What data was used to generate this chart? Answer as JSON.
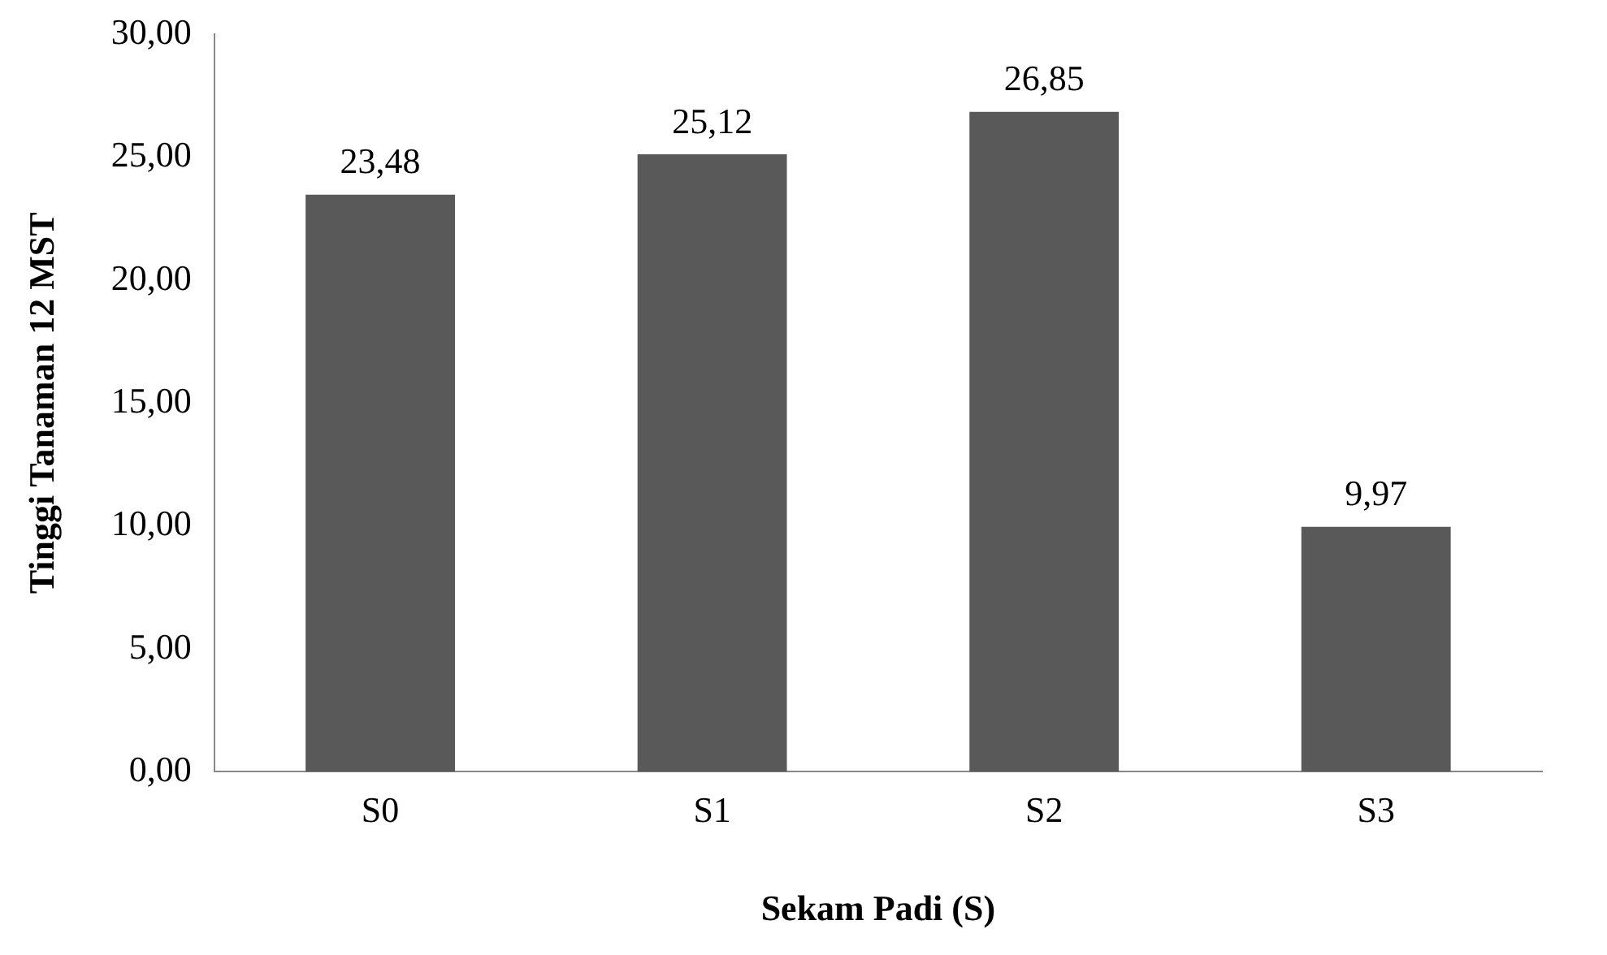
{
  "chart_data": {
    "type": "bar",
    "xlabel": "Sekam Padi (S)",
    "ylabel": "Tinggi Tanaman 12 MST",
    "categories": [
      "S0",
      "S1",
      "S2",
      "S3"
    ],
    "values": [
      23.48,
      25.12,
      26.85,
      9.97
    ],
    "value_labels": [
      "23,48",
      "25,12",
      "26,85",
      "9,97"
    ],
    "color": "#595959",
    "ylim": [
      0,
      30
    ],
    "yticks": [
      {
        "value": 0,
        "label": "0,00"
      },
      {
        "value": 5,
        "label": "5,00"
      },
      {
        "value": 10,
        "label": "10,00"
      },
      {
        "value": 15,
        "label": "15,00"
      },
      {
        "value": 20,
        "label": "20,00"
      },
      {
        "value": 25,
        "label": "25,00"
      },
      {
        "value": 30,
        "label": "30,00"
      }
    ],
    "grid": false,
    "legend": false
  }
}
